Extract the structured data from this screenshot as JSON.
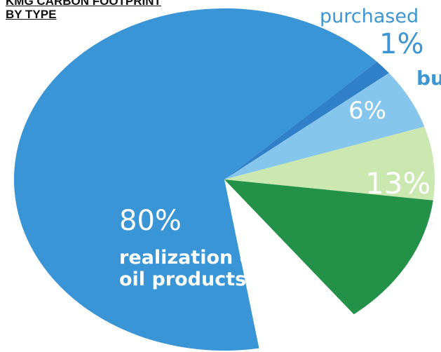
{
  "chart_data": {
    "type": "pie",
    "title_lines": [
      "KMG CARBON FOOTPRINT",
      "BY TYPE"
    ],
    "slices": [
      {
        "label": "realization of oil products",
        "percent_text": "80%",
        "value": 80,
        "color": "#3a95d7"
      },
      {
        "label": "purchased",
        "percent_text": "1%",
        "value": 1,
        "color": "#2f7fc9"
      },
      {
        "label": "bu",
        "percent_text": "6%",
        "value": 6,
        "color": "#86c5ec"
      },
      {
        "label": "",
        "percent_text": "",
        "value": 0,
        "color": "#cbe8b1"
      },
      {
        "label": "",
        "percent_text": "13%",
        "value": 13,
        "color": "#249148"
      }
    ],
    "legend": "none",
    "colors": {
      "label_blue": "#3d96d4",
      "label_white": "#ffffff"
    }
  }
}
